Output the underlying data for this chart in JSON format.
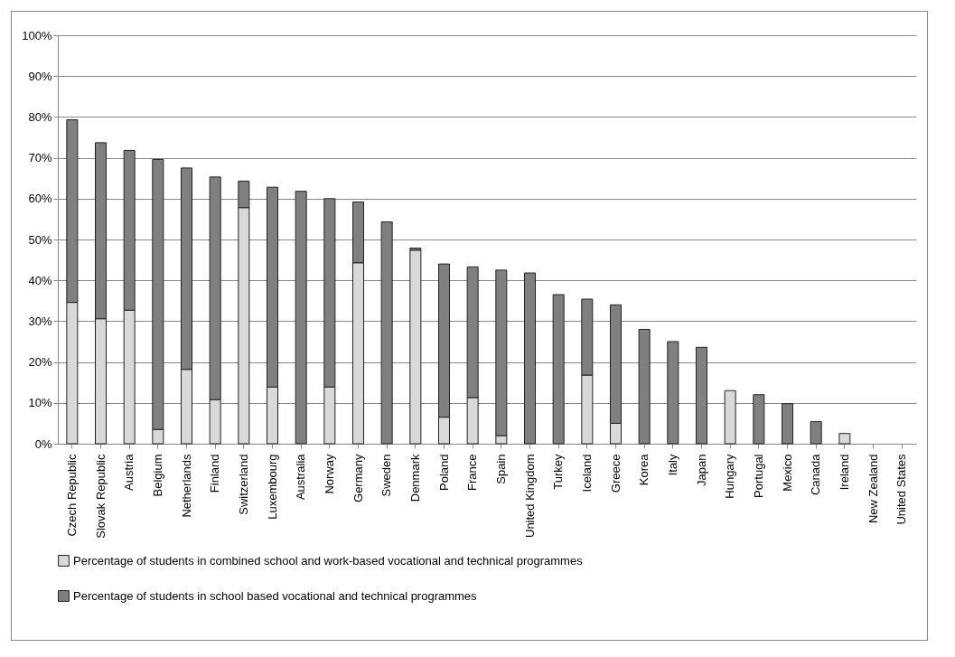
{
  "chart_data": {
    "type": "bar",
    "stacked": true,
    "categories": [
      "Czech Republic",
      "Slovak Republic",
      "Austria",
      "Belgium",
      "Netherlands",
      "Finland",
      "Switzerland",
      "Luxembourg",
      "Australia",
      "Norway",
      "Germany",
      "Sweden",
      "Denmark",
      "Poland",
      "France",
      "Spain",
      "United Kingdom",
      "Turkey",
      "Iceland",
      "Greece",
      "Korea",
      "Italy",
      "Japan",
      "Hungary",
      "Portugal",
      "Mexico",
      "Canada",
      "Ireland",
      "New Zealand",
      "United States"
    ],
    "series": [
      {
        "name": "Percentage of students in combined school and work-based vocational and technical programmes",
        "color": "#d9d9d9",
        "values": [
          34.6,
          30.6,
          32.7,
          3.5,
          18.2,
          10.8,
          57.8,
          13.9,
          0,
          13.9,
          44.3,
          0,
          47.4,
          6.5,
          11.3,
          2.0,
          0,
          0,
          16.8,
          5.0,
          0,
          0,
          0,
          13.0,
          0,
          0,
          0,
          2.5,
          0,
          0
        ]
      },
      {
        "name": "Percentage of students in school based vocational and technical programmes",
        "color": "#808080",
        "values": [
          44.7,
          43.1,
          39.1,
          66.1,
          49.3,
          54.5,
          6.5,
          48.9,
          61.8,
          46.1,
          14.9,
          54.3,
          0.5,
          37.5,
          32.0,
          40.5,
          41.8,
          36.5,
          18.6,
          29.0,
          28.0,
          25.0,
          23.6,
          0,
          12.0,
          9.8,
          5.4,
          0,
          0,
          0
        ]
      }
    ],
    "ylim": [
      0,
      100
    ],
    "yticks": [
      {
        "value": 0,
        "label": "0%"
      },
      {
        "value": 10,
        "label": "10%"
      },
      {
        "value": 20,
        "label": "20%"
      },
      {
        "value": 30,
        "label": "30%"
      },
      {
        "value": 40,
        "label": "40%"
      },
      {
        "value": 50,
        "label": "50%"
      },
      {
        "value": 60,
        "label": "60%"
      },
      {
        "value": 70,
        "label": "70%"
      },
      {
        "value": 80,
        "label": "80%"
      },
      {
        "value": 90,
        "label": "90%"
      },
      {
        "value": 100,
        "label": "100%"
      }
    ],
    "grid": "y",
    "legend": "bottom"
  }
}
